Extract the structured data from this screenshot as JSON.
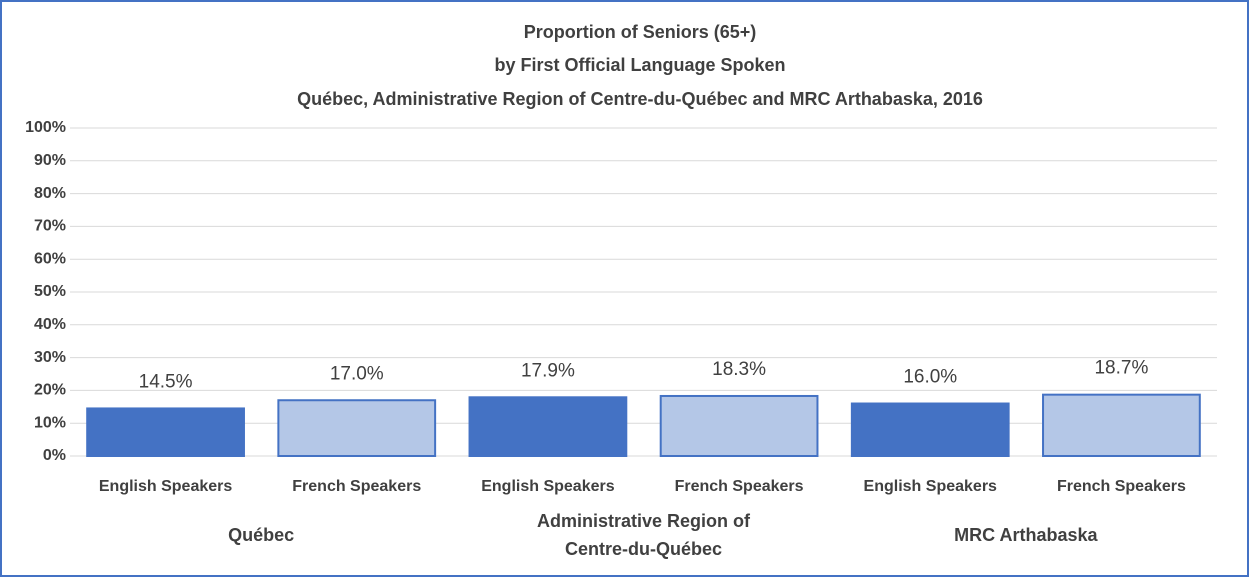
{
  "chart_data": {
    "type": "bar",
    "title": [
      "Proportion of Seniors (65+)",
      "by First Official Language Spoken",
      "Québec, Administrative Region of Centre-du-Québec and MRC Arthabaska, 2016"
    ],
    "categories": [
      "English Speakers",
      "French Speakers",
      "English Speakers",
      "French Speakers",
      "English Speakers",
      "French Speakers"
    ],
    "groups": [
      [
        "Québec"
      ],
      [
        "Administrative Region of",
        "Centre-du-Québec"
      ],
      [
        "MRC Arthabaska"
      ]
    ],
    "values": [
      14.5,
      17.0,
      17.9,
      18.3,
      16.0,
      18.7
    ],
    "value_labels": [
      "14.5%",
      "17.0%",
      "17.9%",
      "18.3%",
      "16.0%",
      "18.7%"
    ],
    "colors": [
      "#4472c4",
      "#b4c7e7",
      "#4472c4",
      "#b4c7e7",
      "#4472c4",
      "#b4c7e7"
    ],
    "border_color": "#4472c4",
    "ylim": [
      0,
      100
    ],
    "yticks": [
      {
        "value": 0,
        "label": "0%"
      },
      {
        "value": 10,
        "label": "10%"
      },
      {
        "value": 20,
        "label": "20%"
      },
      {
        "value": 30,
        "label": "30%"
      },
      {
        "value": 40,
        "label": "40%"
      },
      {
        "value": 50,
        "label": "50%"
      },
      {
        "value": 60,
        "label": "60%"
      },
      {
        "value": 70,
        "label": "70%"
      },
      {
        "value": 80,
        "label": "80%"
      },
      {
        "value": 90,
        "label": "90%"
      },
      {
        "value": 100,
        "label": "100%"
      }
    ],
    "grid": true
  }
}
